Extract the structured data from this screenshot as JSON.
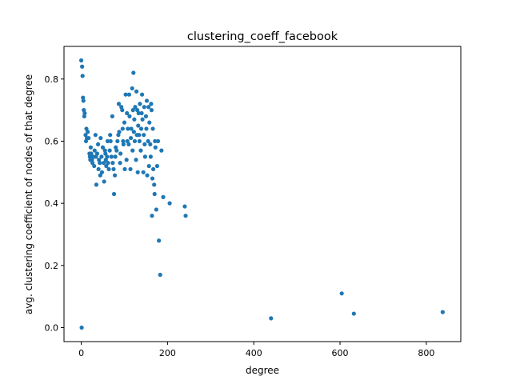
{
  "chart_data": {
    "type": "scatter",
    "title": "clustering_coeff_facebook",
    "xlabel": "degree",
    "ylabel": "avg. clustering coefficient of nodes of that degree",
    "xlim": [
      -40,
      880
    ],
    "ylim": [
      -0.045,
      0.905
    ],
    "xticks": [
      0,
      200,
      400,
      600,
      800
    ],
    "yticks": [
      0.0,
      0.2,
      0.4,
      0.6,
      0.8
    ],
    "grid": false,
    "legend": "none",
    "marker_color": "#1f77b4",
    "series": [
      {
        "points": [
          [
            0,
            0.86
          ],
          [
            1,
            0.0
          ],
          [
            2,
            0.84
          ],
          [
            3,
            0.81
          ],
          [
            4,
            0.74
          ],
          [
            5,
            0.73
          ],
          [
            6,
            0.7
          ],
          [
            7,
            0.68
          ],
          [
            8,
            0.69
          ],
          [
            10,
            0.62
          ],
          [
            11,
            0.6
          ],
          [
            12,
            0.64
          ],
          [
            13,
            0.61
          ],
          [
            15,
            0.63
          ],
          [
            17,
            0.61
          ],
          [
            19,
            0.56
          ],
          [
            20,
            0.55
          ],
          [
            21,
            0.54
          ],
          [
            22,
            0.58
          ],
          [
            23,
            0.56
          ],
          [
            25,
            0.54
          ],
          [
            26,
            0.53
          ],
          [
            28,
            0.55
          ],
          [
            30,
            0.52
          ],
          [
            31,
            0.57
          ],
          [
            33,
            0.62
          ],
          [
            34,
            0.55
          ],
          [
            35,
            0.46
          ],
          [
            37,
            0.56
          ],
          [
            39,
            0.59
          ],
          [
            40,
            0.51
          ],
          [
            41,
            0.54
          ],
          [
            43,
            0.53
          ],
          [
            44,
            0.49
          ],
          [
            45,
            0.61
          ],
          [
            47,
            0.55
          ],
          [
            48,
            0.5
          ],
          [
            50,
            0.58
          ],
          [
            52,
            0.53
          ],
          [
            53,
            0.47
          ],
          [
            55,
            0.57
          ],
          [
            56,
            0.56
          ],
          [
            57,
            0.54
          ],
          [
            58,
            0.52
          ],
          [
            60,
            0.55
          ],
          [
            61,
            0.6
          ],
          [
            62,
            0.53
          ],
          [
            64,
            0.51
          ],
          [
            66,
            0.57
          ],
          [
            67,
            0.62
          ],
          [
            68,
            0.6
          ],
          [
            70,
            0.55
          ],
          [
            72,
            0.68
          ],
          [
            73,
            0.53
          ],
          [
            75,
            0.51
          ],
          [
            76,
            0.43
          ],
          [
            78,
            0.49
          ],
          [
            79,
            0.55
          ],
          [
            80,
            0.58
          ],
          [
            82,
            0.57
          ],
          [
            84,
            0.6
          ],
          [
            86,
            0.62
          ],
          [
            87,
            0.72
          ],
          [
            88,
            0.63
          ],
          [
            90,
            0.53
          ],
          [
            91,
            0.56
          ],
          [
            93,
            0.71
          ],
          [
            95,
            0.7
          ],
          [
            96,
            0.64
          ],
          [
            97,
            0.6
          ],
          [
            98,
            0.59
          ],
          [
            100,
            0.66
          ],
          [
            101,
            0.51
          ],
          [
            103,
            0.75
          ],
          [
            105,
            0.54
          ],
          [
            106,
            0.69
          ],
          [
            107,
            0.6
          ],
          [
            108,
            0.64
          ],
          [
            110,
            0.59
          ],
          [
            111,
            0.75
          ],
          [
            112,
            0.68
          ],
          [
            114,
            0.51
          ],
          [
            115,
            0.61
          ],
          [
            116,
            0.64
          ],
          [
            118,
            0.77
          ],
          [
            119,
            0.57
          ],
          [
            120,
            0.7
          ],
          [
            121,
            0.82
          ],
          [
            122,
            0.63
          ],
          [
            123,
            0.67
          ],
          [
            124,
            0.6
          ],
          [
            125,
            0.71
          ],
          [
            127,
            0.54
          ],
          [
            128,
            0.76
          ],
          [
            129,
            0.62
          ],
          [
            130,
            0.7
          ],
          [
            131,
            0.5
          ],
          [
            132,
            0.65
          ],
          [
            133,
            0.69
          ],
          [
            134,
            0.62
          ],
          [
            135,
            0.6
          ],
          [
            136,
            0.72
          ],
          [
            138,
            0.57
          ],
          [
            139,
            0.64
          ],
          [
            140,
            0.69
          ],
          [
            141,
            0.75
          ],
          [
            142,
            0.67
          ],
          [
            144,
            0.5
          ],
          [
            145,
            0.62
          ],
          [
            146,
            0.71
          ],
          [
            147,
            0.59
          ],
          [
            148,
            0.55
          ],
          [
            150,
            0.68
          ],
          [
            151,
            0.64
          ],
          [
            152,
            0.73
          ],
          [
            153,
            0.49
          ],
          [
            155,
            0.6
          ],
          [
            156,
            0.71
          ],
          [
            157,
            0.52
          ],
          [
            158,
            0.66
          ],
          [
            160,
            0.59
          ],
          [
            161,
            0.55
          ],
          [
            162,
            0.72
          ],
          [
            163,
            0.7
          ],
          [
            164,
            0.36
          ],
          [
            165,
            0.48
          ],
          [
            166,
            0.64
          ],
          [
            167,
            0.51
          ],
          [
            169,
            0.46
          ],
          [
            170,
            0.43
          ],
          [
            171,
            0.6
          ],
          [
            172,
            0.58
          ],
          [
            174,
            0.38
          ],
          [
            176,
            0.52
          ],
          [
            178,
            0.6
          ],
          [
            180,
            0.28
          ],
          [
            183,
            0.17
          ],
          [
            186,
            0.57
          ],
          [
            190,
            0.42
          ],
          [
            205,
            0.4
          ],
          [
            240,
            0.39
          ],
          [
            242,
            0.36
          ],
          [
            440,
            0.03
          ],
          [
            604,
            0.11
          ],
          [
            632,
            0.045
          ],
          [
            838,
            0.05
          ]
        ]
      }
    ]
  }
}
